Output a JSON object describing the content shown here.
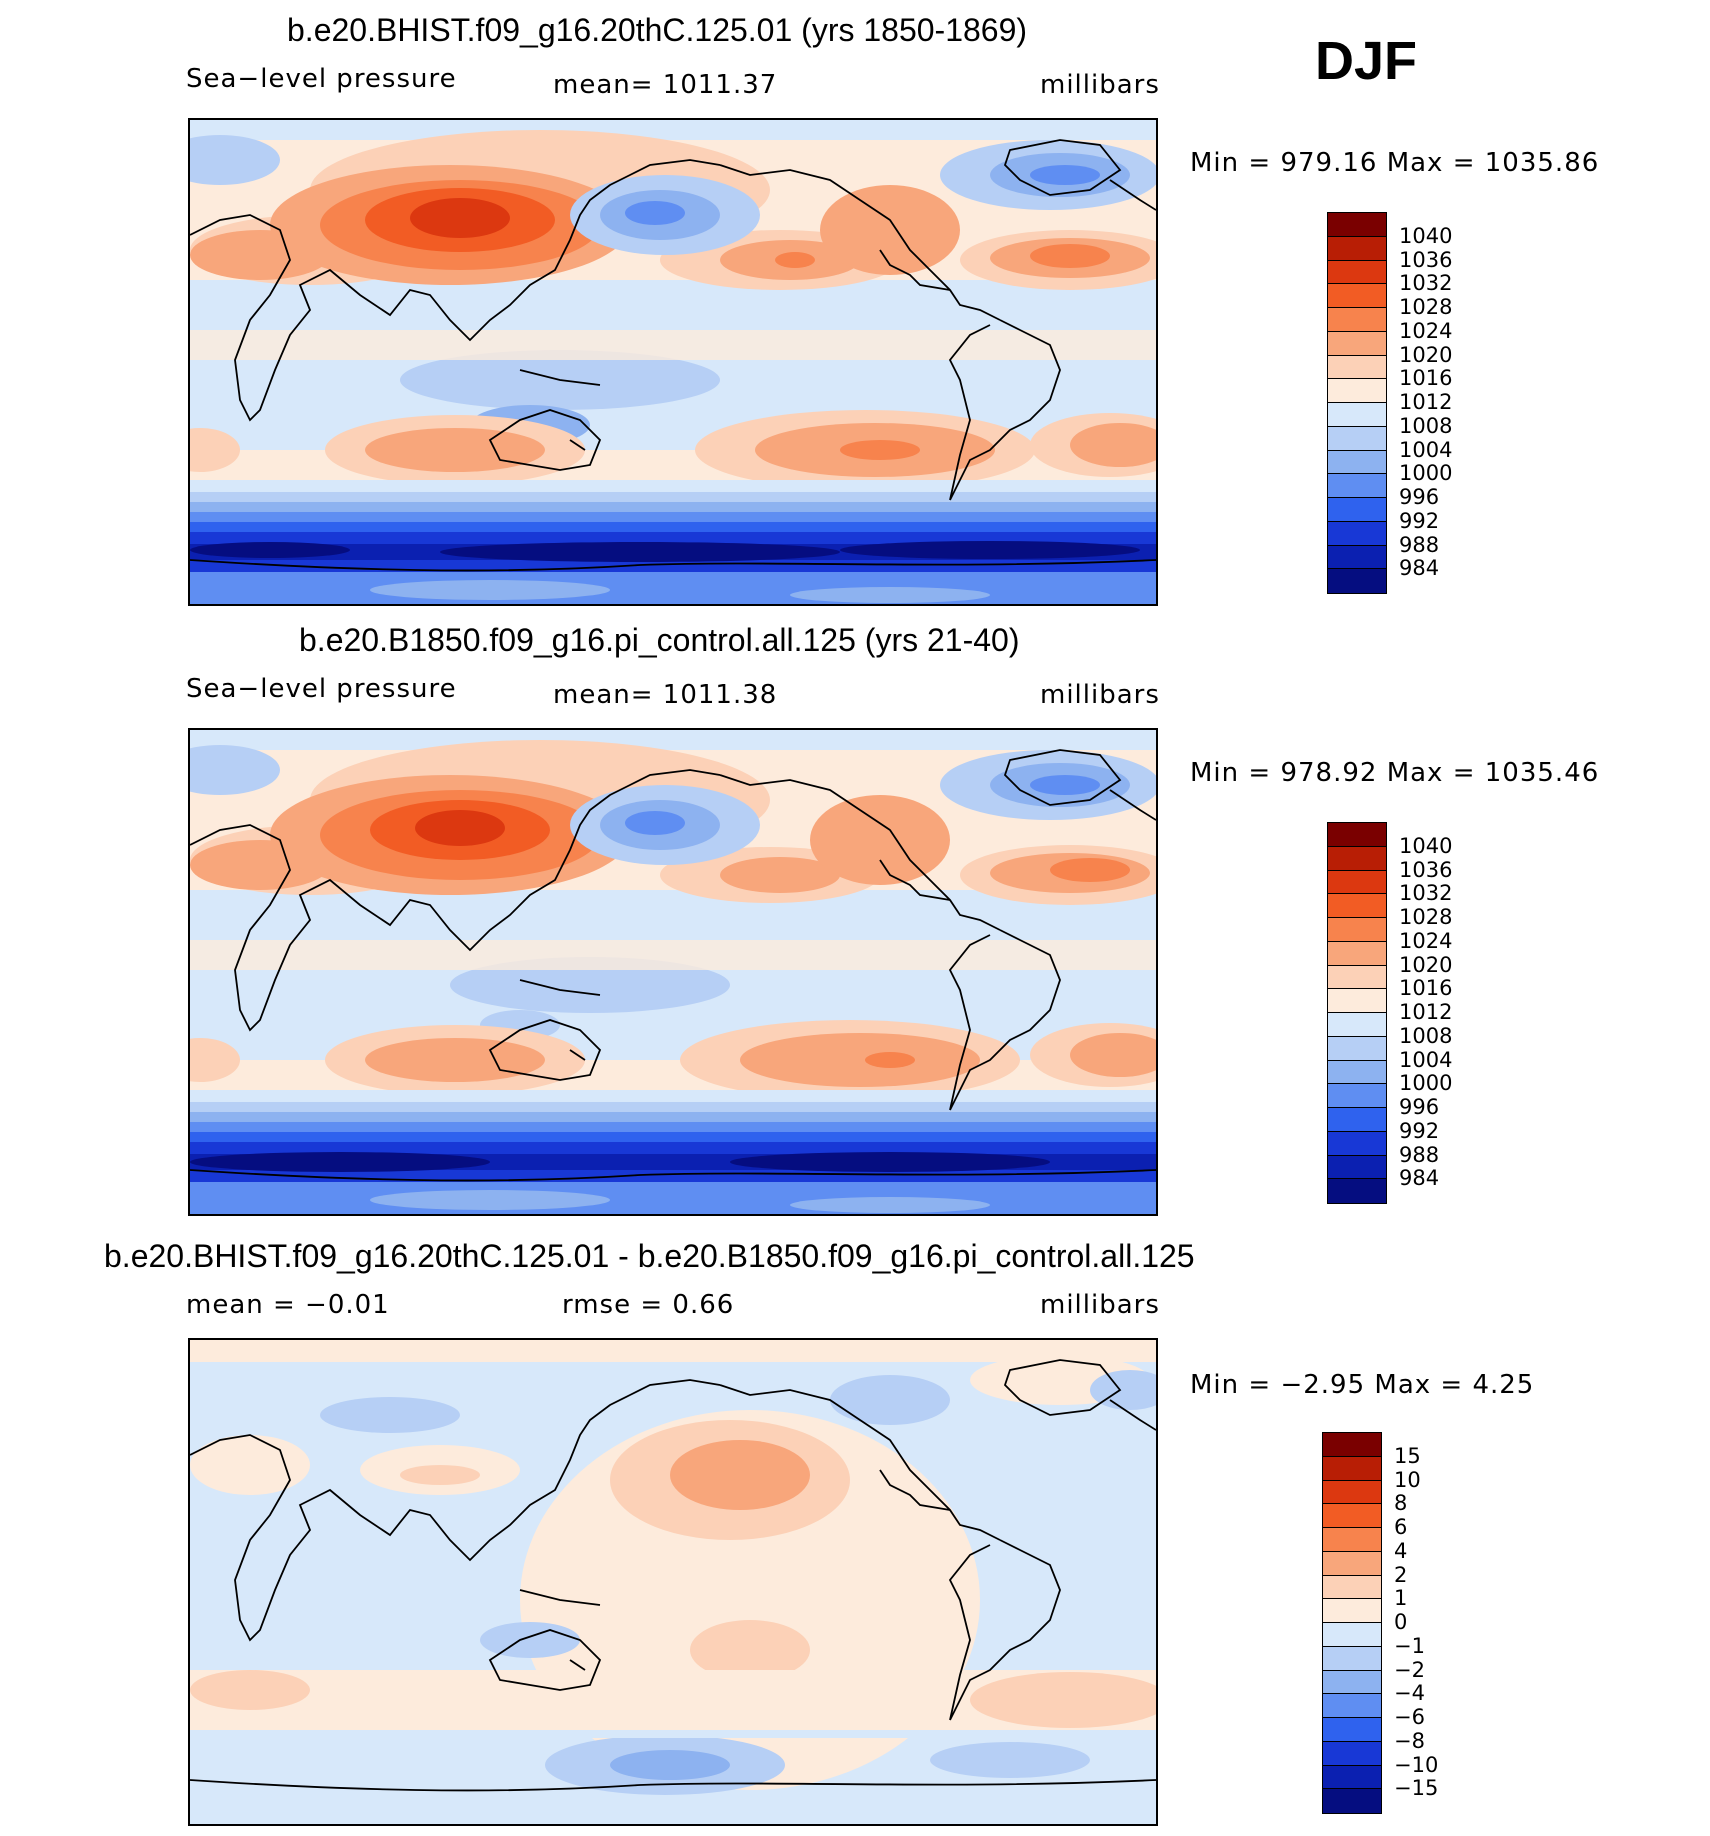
{
  "season": "DJF",
  "panels": [
    {
      "title": "b.e20.BHIST.f09_g16.20thC.125.01 (yrs 1850-1869)",
      "left": "Sea−level pressure",
      "center": "mean=  1011.37",
      "right": "millibars",
      "minmax": "Min  =  979.16  Max  =  1035.86",
      "colorbar_labels": [
        "1040",
        "1036",
        "1032",
        "1028",
        "1024",
        "1020",
        "1016",
        "1012",
        "1008",
        "1004",
        "1000",
        "996",
        "992",
        "988",
        "984"
      ],
      "colorbar_colors": [
        "#7a0000",
        "#b81e05",
        "#dc3810",
        "#f25c24",
        "#f7834d",
        "#f8a67b",
        "#fcd1b7",
        "#fdebdc",
        "#d7e8fa",
        "#b6cff5",
        "#8db2f0",
        "#5f8ef2",
        "#2f62ee",
        "#1838d6",
        "#0b20b1",
        "#050d80"
      ]
    },
    {
      "title": "b.e20.B1850.f09_g16.pi_control.all.125 (yrs 21-40)",
      "left": "Sea−level pressure",
      "center": "mean=  1011.38",
      "right": "millibars",
      "minmax": "Min  =  978.92  Max  =  1035.46",
      "colorbar_labels": [
        "1040",
        "1036",
        "1032",
        "1028",
        "1024",
        "1020",
        "1016",
        "1012",
        "1008",
        "1004",
        "1000",
        "996",
        "992",
        "988",
        "984"
      ],
      "colorbar_colors": [
        "#7a0000",
        "#b81e05",
        "#dc3810",
        "#f25c24",
        "#f7834d",
        "#f8a67b",
        "#fcd1b7",
        "#fdebdc",
        "#d7e8fa",
        "#b6cff5",
        "#8db2f0",
        "#5f8ef2",
        "#2f62ee",
        "#1838d6",
        "#0b20b1",
        "#050d80"
      ]
    },
    {
      "title": "b.e20.BHIST.f09_g16.20thC.125.01 - b.e20.B1850.f09_g16.pi_control.all.125",
      "left": "mean  =    −0.01",
      "center": "rmse  =     0.66",
      "right": "millibars",
      "minmax": "Min  =    −2.95  Max  =     4.25",
      "colorbar_labels": [
        "15",
        "10",
        "8",
        "6",
        "4",
        "2",
        "1",
        "0",
        "−1",
        "−2",
        "−4",
        "−6",
        "−8",
        "−10",
        "−15"
      ],
      "colorbar_colors": [
        "#7a0000",
        "#b81e05",
        "#dc3810",
        "#f25c24",
        "#f7834d",
        "#f8a67b",
        "#fcd1b7",
        "#fdebdc",
        "#d7e8fa",
        "#b6cff5",
        "#8db2f0",
        "#5f8ef2",
        "#2f62ee",
        "#1838d6",
        "#0b20b1",
        "#050d80"
      ]
    }
  ]
}
